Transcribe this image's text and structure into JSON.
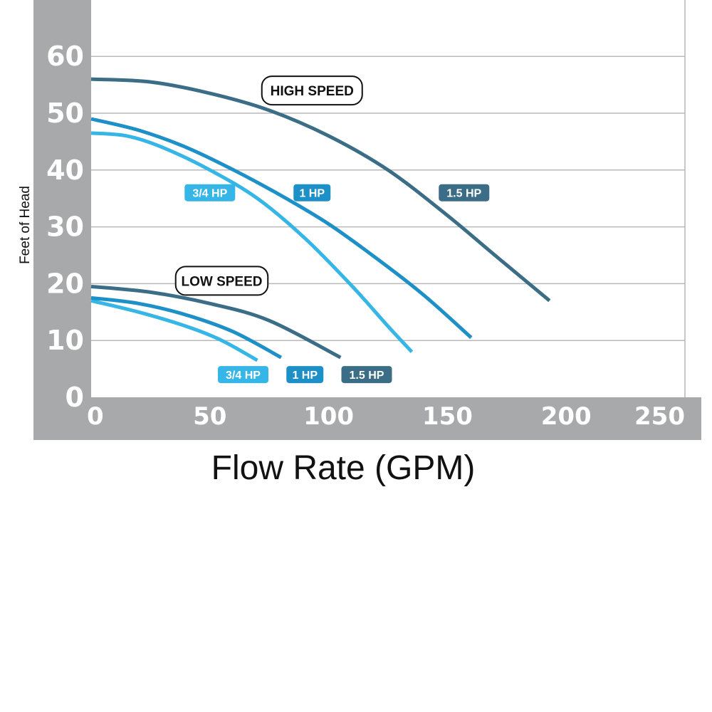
{
  "chart_data": {
    "type": "line",
    "xlabel": "Flow Rate (GPM)",
    "ylabel": "Feet of Head",
    "xlim": [
      0,
      250
    ],
    "ylim": [
      0,
      60
    ],
    "x_ticks": [
      "0",
      "50",
      "100",
      "150",
      "200",
      "250"
    ],
    "y_ticks": [
      "0",
      "10",
      "20",
      "30",
      "40",
      "50",
      "60"
    ],
    "grid": true,
    "groups": [
      {
        "label": "HIGH SPEED",
        "label_anchor": [
          93,
          54
        ]
      },
      {
        "label": "LOW SPEED",
        "label_anchor": [
          55,
          20.5
        ]
      }
    ],
    "series": [
      {
        "name": "3/4 HP",
        "speed": "high",
        "color": "#36b6e6",
        "x": [
          0,
          15,
          30,
          50,
          70,
          90,
          110,
          125,
          135
        ],
        "y": [
          46.5,
          46,
          44,
          40,
          35,
          28,
          19.5,
          12.5,
          8
        ]
      },
      {
        "name": "1 HP",
        "speed": "high",
        "color": "#1e90c8",
        "x": [
          0,
          20,
          40,
          60,
          80,
          100,
          120,
          140,
          160
        ],
        "y": [
          49,
          47,
          44,
          40,
          35.5,
          30.5,
          24.5,
          18,
          10.5
        ]
      },
      {
        "name": "1.5 HP",
        "speed": "high",
        "color": "#3b6d87",
        "x": [
          0,
          25,
          50,
          75,
          100,
          125,
          150,
          170,
          193
        ],
        "y": [
          56,
          55.5,
          53.5,
          50.5,
          46,
          40,
          32,
          25,
          17
        ]
      },
      {
        "name": "3/4 HP",
        "speed": "low",
        "color": "#36b6e6",
        "x": [
          0,
          20,
          40,
          55,
          70
        ],
        "y": [
          17,
          15,
          12.5,
          10,
          6.5
        ]
      },
      {
        "name": "1 HP",
        "speed": "low",
        "color": "#1e90c8",
        "x": [
          0,
          20,
          40,
          60,
          80
        ],
        "y": [
          17.5,
          16.5,
          14.5,
          11.5,
          7
        ]
      },
      {
        "name": "1.5 HP",
        "speed": "low",
        "color": "#3b6d87",
        "x": [
          0,
          25,
          50,
          75,
          105
        ],
        "y": [
          19.5,
          18.5,
          16.5,
          13.5,
          7
        ]
      }
    ],
    "series_labels": [
      {
        "text": "3/4 HP",
        "color": "#36b6e6",
        "at": [
          50,
          36
        ]
      },
      {
        "text": "1 HP",
        "color": "#1e90c8",
        "at": [
          93,
          36
        ]
      },
      {
        "text": "1.5 HP",
        "color": "#3b6d87",
        "at": [
          157,
          36
        ]
      },
      {
        "text": "3/4 HP",
        "color": "#36b6e6",
        "at": [
          64,
          4
        ]
      },
      {
        "text": "1 HP",
        "color": "#1e90c8",
        "at": [
          90,
          4
        ]
      },
      {
        "text": "1.5 HP",
        "color": "#3b6d87",
        "at": [
          116,
          4
        ]
      }
    ]
  }
}
